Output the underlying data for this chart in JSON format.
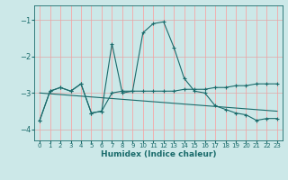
{
  "xlabel": "Humidex (Indice chaleur)",
  "background_color": "#cce8e8",
  "grid_color": "#ff9999",
  "line_color": "#1a6b6b",
  "xlim": [
    -0.5,
    23.5
  ],
  "ylim": [
    -4.3,
    -0.6
  ],
  "yticks": [
    -4,
    -3,
    -2,
    -1
  ],
  "xticks": [
    0,
    1,
    2,
    3,
    4,
    5,
    6,
    7,
    8,
    9,
    10,
    11,
    12,
    13,
    14,
    15,
    16,
    17,
    18,
    19,
    20,
    21,
    22,
    23
  ],
  "series1_x": [
    0,
    1,
    2,
    3,
    4,
    5,
    6,
    7,
    8,
    9,
    10,
    11,
    12,
    13,
    14,
    15,
    16,
    17,
    18,
    19,
    20,
    21,
    22,
    23
  ],
  "series1_y": [
    -3.75,
    -2.95,
    -2.85,
    -2.95,
    -2.75,
    -3.55,
    -3.5,
    -1.65,
    -3.0,
    -2.95,
    -1.35,
    -1.1,
    -1.05,
    -1.75,
    -2.6,
    -2.95,
    -3.0,
    -3.35,
    -3.45,
    -3.55,
    -3.6,
    -3.75,
    -3.7,
    -3.7
  ],
  "series2_x": [
    0,
    1,
    2,
    3,
    4,
    5,
    6,
    7,
    8,
    9,
    10,
    11,
    12,
    13,
    14,
    15,
    16,
    17,
    18,
    19,
    20,
    21,
    22,
    23
  ],
  "series2_y": [
    -3.75,
    -2.95,
    -2.85,
    -2.95,
    -2.75,
    -3.55,
    -3.5,
    -3.0,
    -2.95,
    -2.95,
    -2.95,
    -2.95,
    -2.95,
    -2.95,
    -2.9,
    -2.9,
    -2.9,
    -2.85,
    -2.85,
    -2.8,
    -2.8,
    -2.75,
    -2.75,
    -2.75
  ],
  "series3_x": [
    0,
    23
  ],
  "series3_y": [
    -3.0,
    -3.5
  ]
}
